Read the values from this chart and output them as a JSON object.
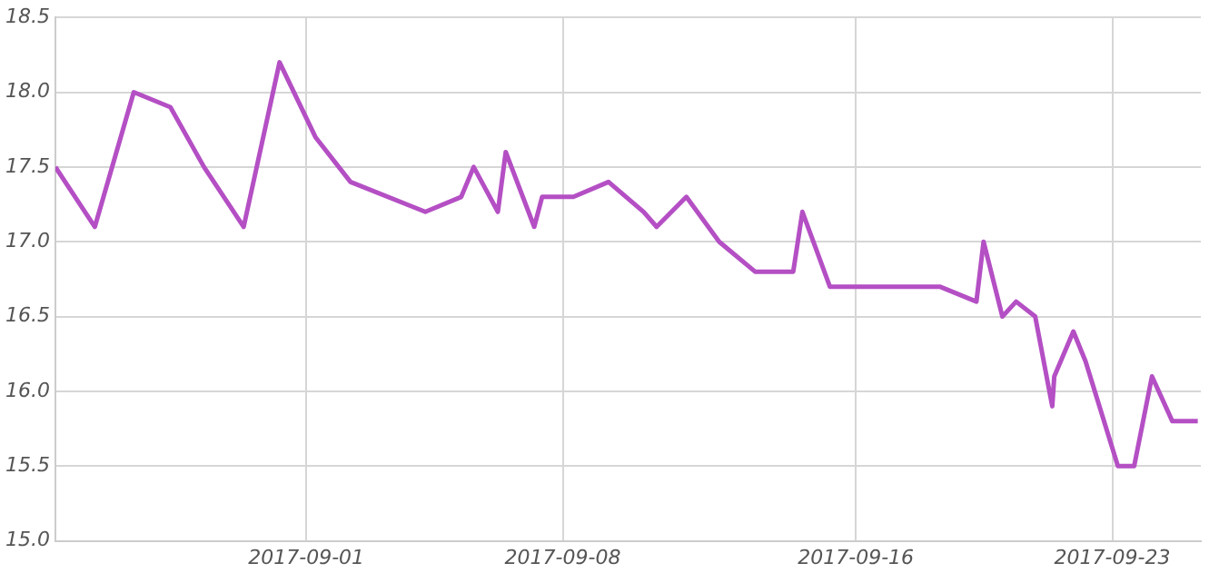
{
  "chart_data": {
    "type": "line",
    "x": [
      "2017-08-25T03:40",
      "2017-08-26T05:30",
      "2017-08-27T07:00",
      "2017-08-28T07:00",
      "2017-08-29T05:00",
      "2017-08-30T07:00",
      "2017-08-31T06:30",
      "2017-09-01T06:00",
      "2017-09-02T05:00",
      "2017-09-04T06:00",
      "2017-09-05T05:30",
      "2017-09-05T13:40",
      "2017-09-06T05:30",
      "2017-09-06T10:40",
      "2017-09-07T05:20",
      "2017-09-07T10:30",
      "2017-09-08T07:00",
      "2017-09-09T06:00",
      "2017-09-10T05:00",
      "2017-09-10T13:30",
      "2017-09-11T09:00",
      "2017-09-12T06:30",
      "2017-09-13T06:00",
      "2017-09-14T07:00",
      "2017-09-14T13:00",
      "2017-09-15T07:00",
      "2017-09-18T07:00",
      "2017-09-19T07:00",
      "2017-09-19T11:40",
      "2017-09-20T00:00",
      "2017-09-20T09:00",
      "2017-09-20T21:30",
      "2017-09-21T08:40",
      "2017-09-21T10:00",
      "2017-09-21T22:30",
      "2017-09-22T06:30",
      "2017-09-23T03:40",
      "2017-09-23T14:20",
      "2017-09-24T02:00",
      "2017-09-24T15:20",
      "2017-09-25T08:00"
    ],
    "series": [
      {
        "color": "#b44fc4",
        "values": [
          17.5,
          17.1,
          18.0,
          17.9,
          17.5,
          17.1,
          18.2,
          17.7,
          17.4,
          17.2,
          17.3,
          17.5,
          17.2,
          17.6,
          17.1,
          17.3,
          17.3,
          17.4,
          17.2,
          17.1,
          17.3,
          17.0,
          16.8,
          16.8,
          17.2,
          16.7,
          16.7,
          16.6,
          17.0,
          16.5,
          16.6,
          16.5,
          15.9,
          16.1,
          16.4,
          16.2,
          15.5,
          15.5,
          16.1,
          15.8,
          15.8
        ]
      }
    ],
    "xlim": [
      "2017-08-25T03:40",
      "2017-09-25T10:00"
    ],
    "xticks": [
      "2017-09-01",
      "2017-09-08",
      "2017-09-16",
      "2017-09-23"
    ],
    "ylim": [
      15,
      18.5
    ],
    "yticks": [
      {
        "value": 15,
        "label": "15.0"
      },
      {
        "value": 15.5,
        "label": "15.5"
      },
      {
        "value": 16,
        "label": "16.0"
      },
      {
        "value": 16.5,
        "label": "16.5"
      },
      {
        "value": 17,
        "label": "17.0"
      },
      {
        "value": 17.5,
        "label": "17.5"
      },
      {
        "value": 18,
        "label": "18.0"
      },
      {
        "value": 18.5,
        "label": "18.5"
      }
    ],
    "grid": true,
    "legend": false,
    "marker": "none",
    "line_style": "solid"
  }
}
